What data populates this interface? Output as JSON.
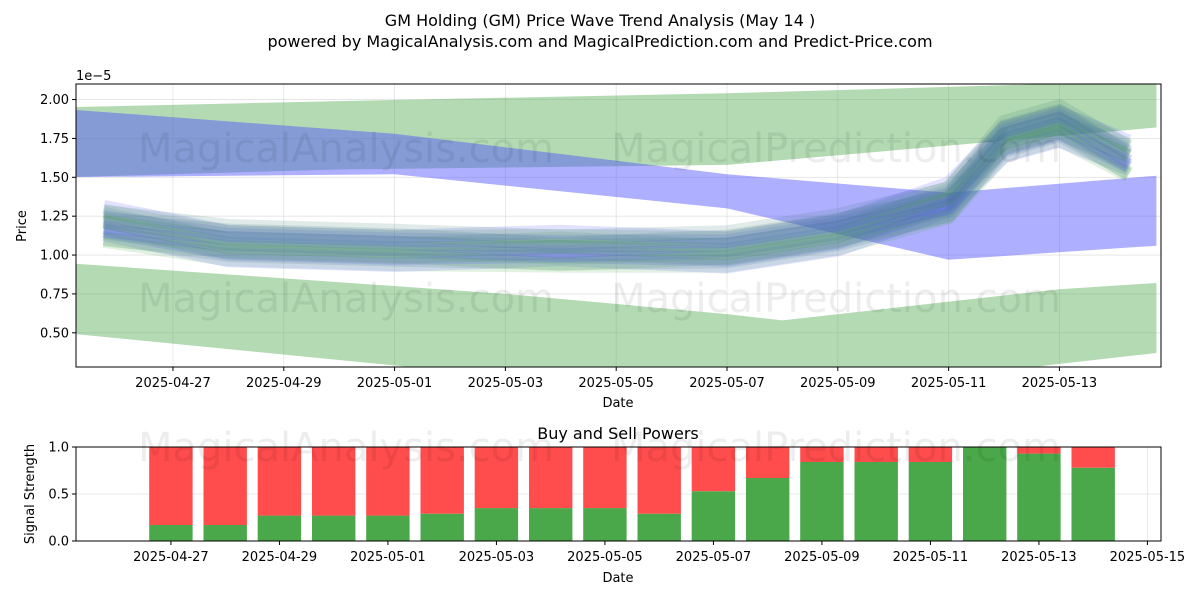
{
  "title": "GM Holding (GM) Price Wave Trend Analysis (May 14 )",
  "subtitle": "powered by MagicalAnalysis.com and MagicalPrediction.com and Predict-Price.com",
  "watermarks": [
    "MagicalAnalysis.com",
    "MagicalPrediction.com"
  ],
  "colors": {
    "buy": "#4aa84a",
    "sell": "#ff4c4c",
    "green_band": "#4aa84a",
    "blue_band": "#4d4dff",
    "grid": "#b0b0b0"
  },
  "chart_data": [
    {
      "type": "area",
      "title": "",
      "xlabel": "Date",
      "ylabel": "Price",
      "y_scale_label": "1e−5",
      "x_ticks": [
        "2025-04-27",
        "2025-04-29",
        "2025-05-01",
        "2025-05-03",
        "2025-05-05",
        "2025-05-07",
        "2025-05-09",
        "2025-05-11",
        "2025-05-13"
      ],
      "y_ticks": [
        "0.50",
        "0.75",
        "1.00",
        "1.25",
        "1.50",
        "1.75",
        "2.00"
      ],
      "xlim": [
        "2025-04-25 06:00",
        "2025-05-14 20:00"
      ],
      "ylim": [
        0.28,
        2.1
      ],
      "grid": true,
      "bands": [
        {
          "color": "green",
          "x": [
            "2025-04-25",
            "2025-04-30",
            "2025-05-07",
            "2025-05-14 18:00"
          ],
          "upper": [
            1.95,
            1.99,
            2.04,
            2.12
          ],
          "lower": [
            1.5,
            1.55,
            1.58,
            1.82
          ]
        },
        {
          "color": "blue",
          "x": [
            "2025-04-25",
            "2025-05-01",
            "2025-05-07",
            "2025-05-11",
            "2025-05-14 18:00"
          ],
          "upper": [
            1.94,
            1.78,
            1.52,
            1.4,
            1.51
          ],
          "lower": [
            1.5,
            1.52,
            1.3,
            0.97,
            1.06
          ]
        },
        {
          "color": "green",
          "x": [
            "2025-04-25",
            "2025-05-03",
            "2025-05-07",
            "2025-05-08",
            "2025-05-13",
            "2025-05-14 18:00"
          ],
          "upper": [
            0.95,
            0.75,
            0.62,
            0.58,
            0.78,
            0.82
          ],
          "lower": [
            0.5,
            0.22,
            0.14,
            0.08,
            0.3,
            0.37
          ]
        }
      ],
      "wave_center": {
        "x": [
          "2025-04-25 18:00",
          "2025-04-28",
          "2025-05-01",
          "2025-05-04",
          "2025-05-07",
          "2025-05-09",
          "2025-05-11",
          "2025-05-12",
          "2025-05-13",
          "2025-05-14 06:00"
        ],
        "y": [
          1.2,
          1.08,
          1.05,
          1.04,
          1.04,
          1.15,
          1.35,
          1.75,
          1.85,
          1.62
        ]
      }
    },
    {
      "type": "bar",
      "title": "Buy and Sell Powers",
      "xlabel": "Date",
      "ylabel": "Signal Strength",
      "categories": [
        "2025-04-27",
        "2025-04-28",
        "2025-04-29",
        "2025-04-30",
        "2025-05-01",
        "2025-05-02",
        "2025-05-03",
        "2025-05-04",
        "2025-05-05",
        "2025-05-06",
        "2025-05-07",
        "2025-05-08",
        "2025-05-09",
        "2025-05-10",
        "2025-05-11",
        "2025-05-12",
        "2025-05-13",
        "2025-05-14"
      ],
      "x_ticks": [
        "2025-04-27",
        "2025-04-29",
        "2025-05-01",
        "2025-05-03",
        "2025-05-05",
        "2025-05-07",
        "2025-05-09",
        "2025-05-11",
        "2025-05-13",
        "2025-05-15"
      ],
      "y_ticks": [
        "0.0",
        "0.5",
        "1.0"
      ],
      "ylim": [
        0,
        1
      ],
      "series": [
        {
          "name": "Buy",
          "values": [
            0.17,
            0.17,
            0.27,
            0.27,
            0.27,
            0.29,
            0.35,
            0.35,
            0.35,
            0.29,
            0.53,
            0.67,
            0.84,
            0.84,
            0.84,
            1.0,
            0.93,
            0.78
          ]
        },
        {
          "name": "Sell",
          "values": [
            0.83,
            0.83,
            0.73,
            0.73,
            0.73,
            0.71,
            0.65,
            0.65,
            0.65,
            0.71,
            0.47,
            0.33,
            0.16,
            0.16,
            0.16,
            0.0,
            0.07,
            0.22
          ]
        }
      ],
      "grid": true
    }
  ]
}
